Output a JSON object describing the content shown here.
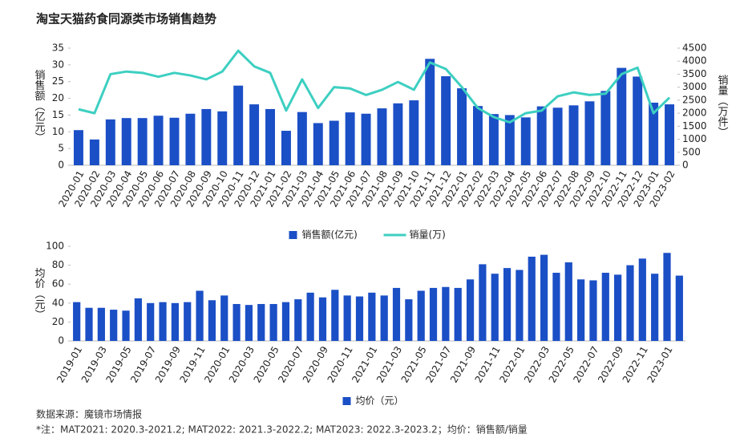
{
  "title": "淘宝天猫药食同源类市场销售趋势",
  "source": "数据来源：魔镜市场情报",
  "note": "*注：MAT2021: 2020.3-2021.2; MAT2022: 2021.3-2022.2; MAT2023: 2022.3-2023.2；均价：销售额/销量",
  "chart_data": [
    {
      "type": "combo",
      "y_label": "销售额（亿元）",
      "y2_label": "销量（万件）",
      "categories": [
        "2020-01",
        "2020-02",
        "2020-03",
        "2020-04",
        "2020-05",
        "2020-06",
        "2020-07",
        "2020-08",
        "2020-09",
        "2020-10",
        "2020-11",
        "2020-12",
        "2021-01",
        "2021-02",
        "2021-03",
        "2021-04",
        "2021-05",
        "2021-06",
        "2021-07",
        "2021-08",
        "2021-09",
        "2021-10",
        "2021-11",
        "2021-12",
        "2022-01",
        "2022-02",
        "2022-03",
        "2022-04",
        "2022-05",
        "2022-06",
        "2022-07",
        "2022-08",
        "2022-09",
        "2022-10",
        "2022-11",
        "2022-12",
        "2023-01",
        "2023-02"
      ],
      "series": [
        {
          "name": "销售额(亿元)",
          "color": "#1b4fc6",
          "type": "bar",
          "axis": "y",
          "values": [
            10.5,
            7.7,
            13.7,
            14.1,
            14.1,
            14.8,
            14.2,
            15.4,
            16.8,
            16.1,
            23.8,
            18.2,
            16.8,
            10.3,
            15.9,
            12.6,
            13.3,
            15.8,
            15.4,
            17.0,
            18.5,
            19.4,
            31.8,
            26.6,
            23.0,
            17.7,
            15.3,
            15.0,
            14.3,
            17.6,
            17.2,
            17.9,
            19.1,
            22.2,
            29.1,
            26.5,
            18.7,
            18.2
          ]
        },
        {
          "name": "销量(万)",
          "color": "#3dcfc1",
          "type": "line",
          "axis": "y2",
          "values": [
            2150,
            2000,
            3500,
            3600,
            3550,
            3400,
            3550,
            3450,
            3300,
            3600,
            4400,
            3800,
            3550,
            2100,
            3300,
            2200,
            3000,
            2950,
            2700,
            2900,
            3200,
            2900,
            3950,
            3700,
            3000,
            2200,
            1850,
            1650,
            2000,
            2100,
            2650,
            2800,
            2700,
            2750,
            3500,
            3750,
            2000,
            2600
          ]
        }
      ],
      "ylim": [
        0,
        35
      ],
      "yticks": [
        0,
        5,
        10,
        15,
        20,
        25,
        30,
        35
      ],
      "y2lim": [
        0,
        4500
      ],
      "y2ticks": [
        0,
        500,
        1000,
        1500,
        2000,
        2500,
        3000,
        3500,
        4000,
        4500
      ]
    },
    {
      "type": "bar",
      "y_label": "均价（元）",
      "categories": [
        "2019-01",
        null,
        "2019-03",
        null,
        "2019-05",
        null,
        "2019-07",
        null,
        "2019-09",
        null,
        "2019-11",
        null,
        "2020-01",
        null,
        "2020-03",
        null,
        "2020-05",
        null,
        "2020-07",
        null,
        "2020-09",
        null,
        "2020-11",
        null,
        "2021-01",
        null,
        "2021-03",
        null,
        "2021-05",
        null,
        "2021-07",
        null,
        "2021-09",
        null,
        "2021-11",
        null,
        "2022-01",
        null,
        "2022-03",
        null,
        "2022-05",
        null,
        "2022-07",
        null,
        "2022-09",
        null,
        "2022-11",
        null,
        "2023-01",
        null
      ],
      "series": [
        {
          "name": "均价（元）",
          "color": "#1b4fc6",
          "values": [
            41,
            35,
            35,
            33,
            32,
            45,
            40,
            41,
            40,
            41,
            53,
            43,
            48,
            39,
            38,
            39,
            39,
            41,
            44,
            51,
            46,
            54,
            48,
            47,
            51,
            48,
            56,
            44,
            53,
            56,
            57,
            56,
            65,
            81,
            71,
            77,
            75,
            89,
            91,
            72,
            83,
            65,
            64,
            72,
            70,
            80,
            87,
            71,
            93,
            69
          ]
        }
      ],
      "ylim": [
        0,
        100
      ],
      "yticks": [
        0,
        20,
        40,
        60,
        80,
        100
      ]
    }
  ]
}
